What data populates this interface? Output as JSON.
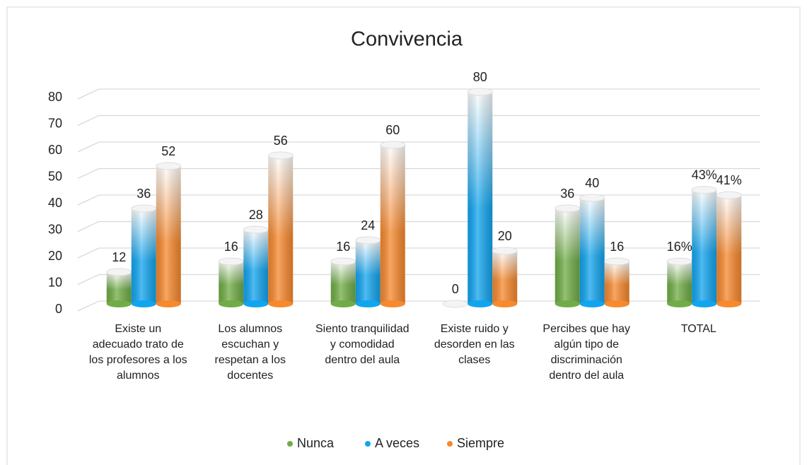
{
  "chart_data": {
    "type": "bar3d",
    "title": "Convivencia",
    "categories": [
      "Existe un adecuado trato de los profesores a los alumnos",
      "Los alumnos escuchan y respetan a los docentes",
      "Siento tranquilidad y comodidad dentro del aula",
      "Existe  ruido y desorden en las clases",
      "Percibes que hay algún tipo de discriminación dentro del aula",
      "TOTAL"
    ],
    "series": [
      {
        "name": "Nunca",
        "color": "#70ad47",
        "values": [
          12,
          16,
          16,
          0,
          36,
          16
        ],
        "value_labels": [
          "12",
          "16",
          "16",
          "0",
          "36",
          "16%"
        ]
      },
      {
        "name": "A veces",
        "color": "#12a5ef",
        "values": [
          36,
          28,
          24,
          80,
          40,
          43
        ],
        "value_labels": [
          "36",
          "28",
          "24",
          "80",
          "40",
          "43%"
        ]
      },
      {
        "name": "Siempre",
        "color": "#f7892e",
        "values": [
          52,
          56,
          60,
          20,
          16,
          41
        ],
        "value_labels": [
          "52",
          "56",
          "60",
          "20",
          "16",
          "41%"
        ]
      }
    ],
    "ylim": [
      0,
      80
    ],
    "yticks": [
      0,
      10,
      20,
      30,
      40,
      50,
      60,
      70,
      80
    ],
    "grid": true,
    "legend": "bottom"
  }
}
